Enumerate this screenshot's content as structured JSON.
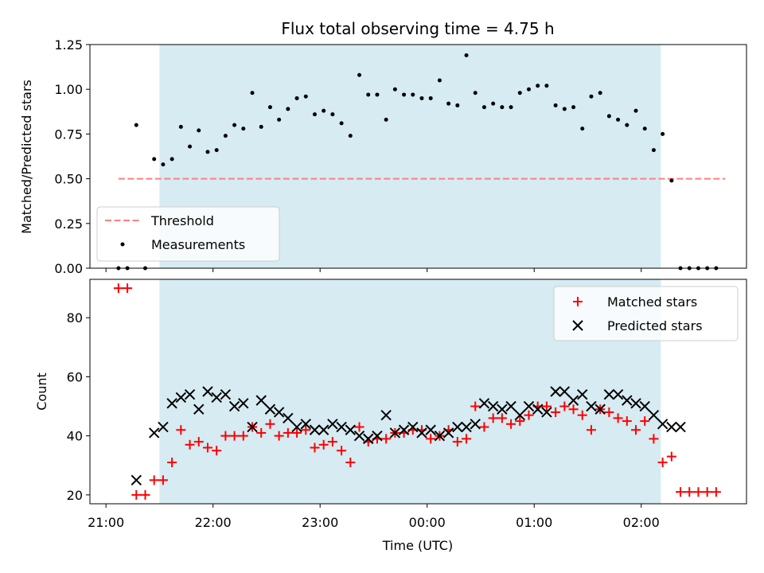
{
  "chart_data": [
    {
      "type": "scatter",
      "title": "Flux total observing time = 4.75 h",
      "xlabel": "",
      "ylabel": "Matched/Predicted stars",
      "ylim": [
        0,
        1.25
      ],
      "yticks": [
        "0.00",
        "0.25",
        "0.50",
        "0.75",
        "1.00",
        "1.25"
      ],
      "x_axis": "time-of-day (UTC), shared with lower panel",
      "shaded_band": {
        "from": "21:30",
        "to": "02:11",
        "color": "#add8e6"
      },
      "legend_position": "lower-left",
      "series": [
        {
          "name": "Threshold",
          "kind": "line",
          "style": "dashed",
          "color": "#ff7f7f",
          "x": [
            "21:07",
            "02:47"
          ],
          "values": [
            0.5,
            0.5
          ]
        },
        {
          "name": "Measurements",
          "kind": "scatter",
          "marker": "dot",
          "color": "#000000",
          "x": [
            "21:07",
            "21:12",
            "21:17",
            "21:22",
            "21:27",
            "21:32",
            "21:37",
            "21:42",
            "21:47",
            "21:52",
            "21:57",
            "22:02",
            "22:07",
            "22:12",
            "22:17",
            "22:22",
            "22:27",
            "22:32",
            "22:37",
            "22:42",
            "22:47",
            "22:52",
            "22:57",
            "23:02",
            "23:07",
            "23:12",
            "23:17",
            "23:22",
            "23:27",
            "23:32",
            "23:37",
            "23:42",
            "23:47",
            "23:52",
            "23:57",
            "00:02",
            "00:07",
            "00:12",
            "00:17",
            "00:22",
            "00:27",
            "00:32",
            "00:37",
            "00:42",
            "00:47",
            "00:52",
            "00:57",
            "01:02",
            "01:07",
            "01:12",
            "01:17",
            "01:22",
            "01:27",
            "01:32",
            "01:37",
            "01:42",
            "01:47",
            "01:52",
            "01:57",
            "02:02",
            "02:07",
            "02:12",
            "02:17",
            "02:22",
            "02:27",
            "02:32",
            "02:37",
            "02:42"
          ],
          "values": [
            0.0,
            0.0,
            0.8,
            0.0,
            0.61,
            0.58,
            0.61,
            0.79,
            0.68,
            0.77,
            0.65,
            0.66,
            0.74,
            0.8,
            0.78,
            0.98,
            0.79,
            0.9,
            0.83,
            0.89,
            0.95,
            0.96,
            0.86,
            0.88,
            0.86,
            0.81,
            0.74,
            1.08,
            0.97,
            0.97,
            0.83,
            1.0,
            0.97,
            0.97,
            0.95,
            0.95,
            1.05,
            0.92,
            0.91,
            1.19,
            0.98,
            0.9,
            0.92,
            0.9,
            0.9,
            0.98,
            1.0,
            1.02,
            1.02,
            0.91,
            0.89,
            0.9,
            0.78,
            0.96,
            0.98,
            0.85,
            0.83,
            0.8,
            0.88,
            0.78,
            0.66,
            0.75,
            0.49,
            0.0,
            0.0,
            0.0,
            0.0,
            0.0
          ]
        }
      ]
    },
    {
      "type": "scatter",
      "title": "",
      "xlabel": "Time (UTC)",
      "ylabel": "Count",
      "ylim": [
        17,
        93
      ],
      "yticks": [
        "20",
        "40",
        "60",
        "80"
      ],
      "xticks": [
        "21:00",
        "22:00",
        "23:00",
        "00:00",
        "01:00",
        "02:00"
      ],
      "xlim": [
        "20:51",
        "02:59"
      ],
      "shaded_band": {
        "from": "21:30",
        "to": "02:11",
        "color": "#add8e6"
      },
      "legend_position": "top-right",
      "series": [
        {
          "name": "Matched stars",
          "marker": "+",
          "color": "#ff0000",
          "x": [
            "21:07",
            "21:12",
            "21:17",
            "21:22",
            "21:27",
            "21:32",
            "21:37",
            "21:42",
            "21:47",
            "21:52",
            "21:57",
            "22:02",
            "22:07",
            "22:12",
            "22:17",
            "22:22",
            "22:27",
            "22:32",
            "22:37",
            "22:42",
            "22:47",
            "22:52",
            "22:57",
            "23:02",
            "23:07",
            "23:12",
            "23:17",
            "23:22",
            "23:27",
            "23:32",
            "23:37",
            "23:42",
            "23:47",
            "23:52",
            "23:57",
            "00:02",
            "00:07",
            "00:12",
            "00:17",
            "00:22",
            "00:27",
            "00:32",
            "00:37",
            "00:42",
            "00:47",
            "00:52",
            "00:57",
            "01:02",
            "01:07",
            "01:12",
            "01:17",
            "01:22",
            "01:27",
            "01:32",
            "01:37",
            "01:42",
            "01:47",
            "01:52",
            "01:57",
            "02:02",
            "02:07",
            "02:12",
            "02:17",
            "02:22",
            "02:27",
            "02:32",
            "02:37",
            "02:42"
          ],
          "values": [
            90,
            90,
            20,
            20,
            25,
            25,
            31,
            42,
            37,
            38,
            36,
            35,
            40,
            40,
            40,
            43,
            41,
            44,
            40,
            41,
            41,
            42,
            36,
            37,
            38,
            35,
            31,
            43,
            38,
            39,
            39,
            41,
            41,
            42,
            42,
            39,
            40,
            42,
            38,
            39,
            50,
            43,
            46,
            46,
            44,
            45,
            47,
            50,
            50,
            48,
            50,
            49,
            47,
            42,
            49,
            48,
            46,
            45,
            42,
            45,
            39,
            31,
            33,
            21,
            21,
            21,
            21,
            21
          ]
        },
        {
          "name": "Predicted stars",
          "marker": "x",
          "color": "#000000",
          "x": [
            "21:17",
            "21:27",
            "21:32",
            "21:37",
            "21:42",
            "21:47",
            "21:52",
            "21:57",
            "22:02",
            "22:07",
            "22:12",
            "22:17",
            "22:22",
            "22:27",
            "22:32",
            "22:37",
            "22:42",
            "22:47",
            "22:52",
            "22:57",
            "23:02",
            "23:07",
            "23:12",
            "23:17",
            "23:22",
            "23:27",
            "23:32",
            "23:37",
            "23:42",
            "23:47",
            "23:52",
            "23:57",
            "00:02",
            "00:07",
            "00:12",
            "00:17",
            "00:22",
            "00:27",
            "00:32",
            "00:37",
            "00:42",
            "00:47",
            "00:52",
            "00:57",
            "01:02",
            "01:07",
            "01:12",
            "01:17",
            "01:22",
            "01:27",
            "01:32",
            "01:37",
            "01:42",
            "01:47",
            "01:52",
            "01:57",
            "02:02",
            "02:07",
            "02:12",
            "02:17",
            "02:22"
          ],
          "values": [
            25,
            41,
            43,
            51,
            53,
            54,
            49,
            55,
            53,
            54,
            50,
            51,
            43,
            52,
            49,
            48,
            46,
            43,
            44,
            42,
            42,
            44,
            43,
            42,
            40,
            39,
            40,
            47,
            41,
            42,
            43,
            41,
            42,
            40,
            41,
            43,
            43,
            44,
            51,
            50,
            49,
            50,
            47,
            50,
            49,
            48,
            55,
            55,
            52,
            54,
            50,
            49,
            54,
            54,
            52,
            51,
            50,
            47,
            44,
            43,
            43
          ]
        }
      ]
    }
  ]
}
